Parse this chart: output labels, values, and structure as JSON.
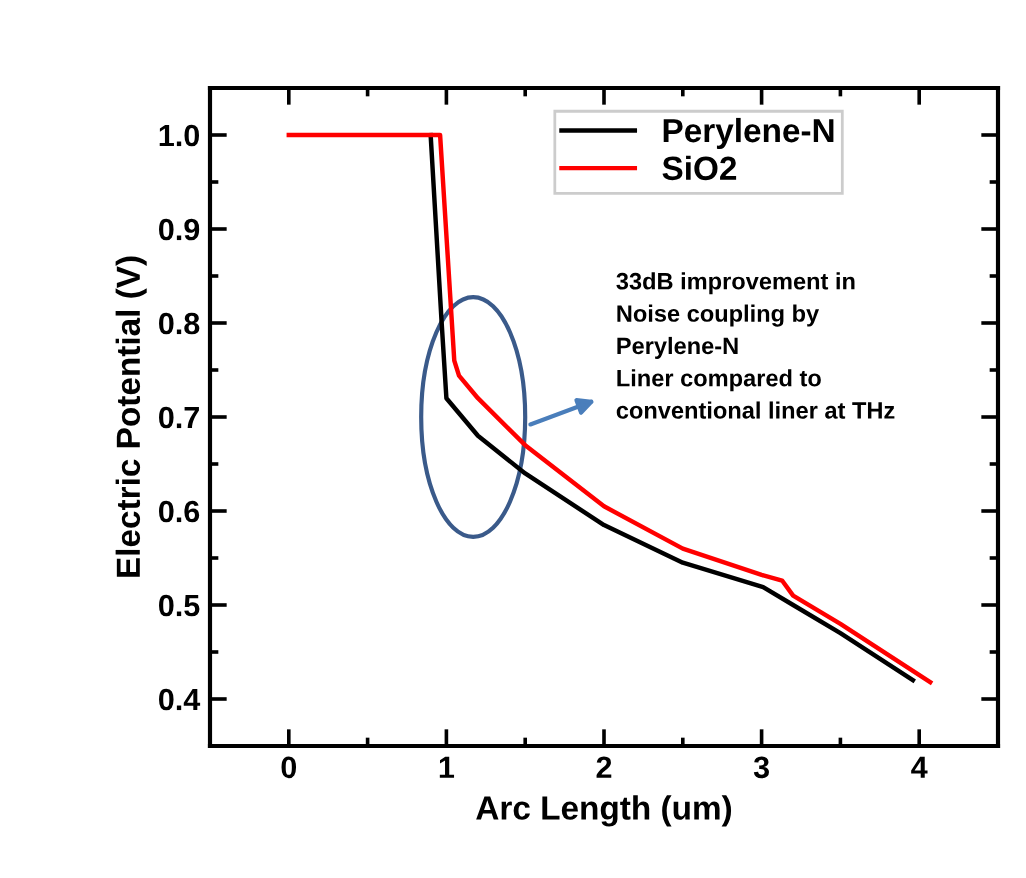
{
  "chart_data": {
    "type": "line",
    "xlabel": "Arc Length (um)",
    "ylabel": "Electric Potential (V)",
    "xlim": [
      -0.5,
      4.5
    ],
    "ylim": [
      0.35,
      1.05
    ],
    "xticks": [
      0,
      1,
      2,
      3,
      4
    ],
    "yticks": [
      0.4,
      0.5,
      0.6,
      0.7,
      0.8,
      0.9,
      {
        "value": 1,
        "label": "1.0"
      }
    ],
    "grid": false,
    "legend": "top",
    "marker": "none",
    "line_style": "solid",
    "series": [
      {
        "name": "Perylene-N",
        "color": "#000000",
        "x": [
          0.9,
          0.97,
          1.0,
          1.2,
          1.5,
          2.0,
          2.5,
          3.01,
          3.2,
          3.5,
          3.96
        ],
        "values": [
          1.0,
          0.8,
          0.72,
          0.68,
          0.64,
          0.585,
          0.545,
          0.519,
          0.5,
          0.47,
          0.42
        ]
      },
      {
        "name": "SiO2",
        "color": "#ff0000",
        "x": [
          0,
          0.96,
          1.05,
          1.08,
          1.2,
          1.5,
          2.0,
          2.5,
          3.0,
          3.13,
          3.2,
          3.5,
          4.07
        ],
        "values": [
          1.0,
          1.0,
          0.76,
          0.744,
          0.72,
          0.67,
          0.605,
          0.56,
          0.532,
          0.526,
          0.51,
          0.48,
          0.418
        ]
      }
    ],
    "annotations": [
      "33dB improvement in\nNoise coupling by\nPerylene-N\nLiner compared to\nconventional liner at THz"
    ]
  }
}
